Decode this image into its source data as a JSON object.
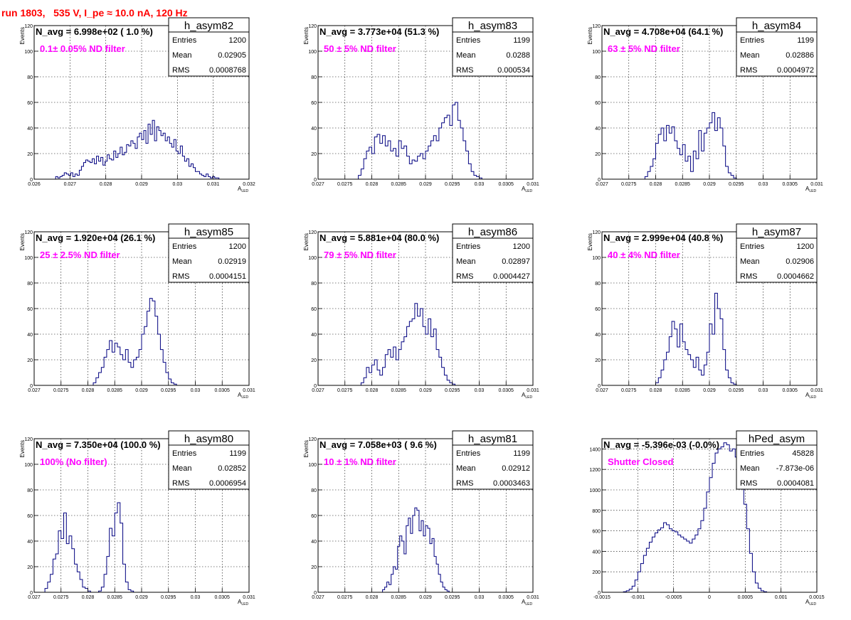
{
  "header": {
    "run_title": "run 1803,   535 V, I_pe ≈ 10.0 nA, 120 Hz"
  },
  "chart_data": [
    {
      "type": "histogram",
      "hist_name": "h_asym82",
      "n_avg_label": "N_avg = 6.998e+02 ( 1.0 %)",
      "filter_label": "0.1± 0.05% ND filter",
      "stats": [
        [
          "Entries",
          "1200"
        ],
        [
          "Mean",
          "0.02905"
        ],
        [
          "RMS",
          "0.0008768"
        ]
      ],
      "xlabel": "A_LED",
      "ylabel": "Events",
      "xlim": [
        0.026,
        0.032
      ],
      "ylim": [
        0,
        120
      ],
      "xticks": [
        "0.026",
        "0.027",
        "0.028",
        "0.029",
        "0.03",
        "0.031",
        "0.032"
      ],
      "yticks": [
        "0",
        "20",
        "40",
        "60",
        "80",
        "100",
        "120"
      ],
      "bin_width": 6e-05,
      "x_start": 0.0266,
      "values": [
        2,
        1,
        2,
        3,
        5,
        4,
        3,
        5,
        2,
        4,
        3,
        7,
        10,
        13,
        15,
        14,
        13,
        16,
        12,
        18,
        14,
        17,
        11,
        14,
        19,
        16,
        15,
        22,
        17,
        20,
        25,
        19,
        21,
        27,
        26,
        30,
        28,
        24,
        33,
        36,
        31,
        38,
        28,
        43,
        35,
        46,
        30,
        41,
        38,
        34,
        36,
        30,
        33,
        28,
        25,
        31,
        22,
        20,
        26,
        18,
        14,
        16,
        10,
        12,
        9,
        6,
        6,
        4,
        3,
        2,
        4,
        2,
        1,
        2,
        1,
        1
      ]
    },
    {
      "type": "histogram",
      "hist_name": "h_asym83",
      "n_avg_label": "N_avg = 3.773e+04 (51.3 %)",
      "filter_label": "50 ± 5% ND filter",
      "stats": [
        [
          "Entries",
          "1199"
        ],
        [
          "Mean",
          "0.0288"
        ],
        [
          "RMS",
          "0.000534"
        ]
      ],
      "xlabel": "A_LED",
      "ylabel": "Events",
      "xlim": [
        0.027,
        0.031
      ],
      "ylim": [
        0,
        120
      ],
      "xticks": [
        "0.027",
        "0.0275",
        "0.028",
        "0.0285",
        "0.029",
        "0.0295",
        "0.03",
        "0.0305",
        "0.031"
      ],
      "yticks": [
        "0",
        "20",
        "40",
        "60",
        "80",
        "100",
        "120"
      ],
      "bin_width": 5e-05,
      "x_start": 0.02775,
      "values": [
        3,
        8,
        16,
        22,
        25,
        20,
        33,
        35,
        28,
        34,
        26,
        30,
        22,
        24,
        18,
        30,
        24,
        26,
        18,
        12,
        15,
        14,
        18,
        20,
        16,
        22,
        26,
        30,
        34,
        30,
        40,
        44,
        48,
        50,
        42,
        58,
        60,
        46,
        40,
        30,
        22,
        12,
        6,
        3,
        2,
        1
      ]
    },
    {
      "type": "histogram",
      "hist_name": "h_asym84",
      "n_avg_label": "N_avg = 4.708e+04 (64.1 %)",
      "filter_label": "63 ± 5% ND filter",
      "stats": [
        [
          "Entries",
          "1199"
        ],
        [
          "Mean",
          "0.02886"
        ],
        [
          "RMS",
          "0.0004972"
        ]
      ],
      "xlabel": "A_LED",
      "ylabel": "Events",
      "xlim": [
        0.027,
        0.031
      ],
      "ylim": [
        0,
        120
      ],
      "xticks": [
        "0.027",
        "0.0275",
        "0.028",
        "0.0285",
        "0.029",
        "0.0295",
        "0.03",
        "0.0305",
        "0.031"
      ],
      "yticks": [
        "0",
        "20",
        "40",
        "60",
        "80",
        "100",
        "120"
      ],
      "bin_width": 5e-05,
      "x_start": 0.0278,
      "values": [
        2,
        6,
        10,
        16,
        28,
        35,
        40,
        30,
        42,
        36,
        41,
        30,
        24,
        19,
        27,
        14,
        18,
        6,
        22,
        16,
        38,
        22,
        36,
        40,
        44,
        52,
        38,
        48,
        40,
        26,
        10,
        5,
        3,
        1
      ]
    },
    {
      "type": "histogram",
      "hist_name": "h_asym85",
      "n_avg_label": "N_avg = 1.920e+04 (26.1 %)",
      "filter_label": "25 ± 2.5% ND filter",
      "stats": [
        [
          "Entries",
          "1200"
        ],
        [
          "Mean",
          "0.02919"
        ],
        [
          "RMS",
          "0.0004151"
        ]
      ],
      "xlabel": "A_LED",
      "ylabel": "Events",
      "xlim": [
        0.027,
        0.031
      ],
      "ylim": [
        0,
        120
      ],
      "xticks": [
        "0.027",
        "0.0275",
        "0.028",
        "0.0285",
        "0.029",
        "0.0295",
        "0.03",
        "0.0305",
        "0.031"
      ],
      "yticks": [
        "0",
        "20",
        "40",
        "60",
        "80",
        "100",
        "120"
      ],
      "bin_width": 5e-05,
      "x_start": 0.0281,
      "values": [
        2,
        6,
        10,
        14,
        22,
        28,
        35,
        26,
        33,
        30,
        24,
        20,
        28,
        18,
        14,
        20,
        22,
        28,
        40,
        46,
        58,
        68,
        66,
        54,
        40,
        28,
        18,
        10,
        5,
        2,
        1
      ]
    },
    {
      "type": "histogram",
      "hist_name": "h_asym86",
      "n_avg_label": "N_avg = 5.881e+04 (80.0 %)",
      "filter_label": "79 ± 5% ND filter",
      "stats": [
        [
          "Entries",
          "1200"
        ],
        [
          "Mean",
          "0.02897"
        ],
        [
          "RMS",
          "0.0004427"
        ]
      ],
      "xlabel": "A_LED",
      "ylabel": "Events",
      "xlim": [
        0.027,
        0.031
      ],
      "ylim": [
        0,
        120
      ],
      "xticks": [
        "0.027",
        "0.0275",
        "0.028",
        "0.0285",
        "0.029",
        "0.0295",
        "0.03",
        "0.0305",
        "0.031"
      ],
      "yticks": [
        "0",
        "20",
        "40",
        "60",
        "80",
        "100",
        "120"
      ],
      "bin_width": 5e-05,
      "x_start": 0.0278,
      "values": [
        2,
        6,
        14,
        10,
        16,
        20,
        12,
        8,
        14,
        24,
        28,
        22,
        30,
        20,
        28,
        34,
        38,
        46,
        50,
        52,
        64,
        54,
        60,
        46,
        40,
        52,
        38,
        44,
        28,
        22,
        14,
        8,
        4,
        2,
        1
      ]
    },
    {
      "type": "histogram",
      "hist_name": "h_asym87",
      "n_avg_label": "N_avg = 2.999e+04 (40.8 %)",
      "filter_label": "40 ± 4% ND filter",
      "stats": [
        [
          "Entries",
          "1200"
        ],
        [
          "Mean",
          "0.02906"
        ],
        [
          "RMS",
          "0.0004662"
        ]
      ],
      "xlabel": "A_LED",
      "ylabel": "Events",
      "xlim": [
        0.027,
        0.031
      ],
      "ylim": [
        0,
        120
      ],
      "xticks": [
        "0.027",
        "0.0275",
        "0.028",
        "0.0285",
        "0.029",
        "0.0295",
        "0.03",
        "0.0305",
        "0.031"
      ],
      "yticks": [
        "0",
        "20",
        "40",
        "60",
        "80",
        "100",
        "120"
      ],
      "bin_width": 5e-05,
      "x_start": 0.028,
      "values": [
        2,
        6,
        12,
        20,
        26,
        38,
        50,
        44,
        30,
        48,
        34,
        28,
        24,
        20,
        14,
        22,
        12,
        8,
        16,
        26,
        48,
        40,
        72,
        60,
        52,
        28,
        12,
        6,
        2,
        1
      ]
    },
    {
      "type": "histogram",
      "hist_name": "h_asym80",
      "n_avg_label": "N_avg = 7.350e+04 (100.0 %)",
      "filter_label": "100% (No filter)",
      "stats": [
        [
          "Entries",
          "1199"
        ],
        [
          "Mean",
          "0.02852"
        ],
        [
          "RMS",
          "0.0006954"
        ]
      ],
      "xlabel": "A_LED",
      "ylabel": "Events",
      "xlim": [
        0.027,
        0.031
      ],
      "ylim": [
        0,
        120
      ],
      "xticks": [
        "0.027",
        "0.0275",
        "0.028",
        "0.0285",
        "0.029",
        "0.0295",
        "0.03",
        "0.0305",
        "0.031"
      ],
      "yticks": [
        "0",
        "20",
        "40",
        "60",
        "80",
        "100",
        "120"
      ],
      "bin_width": 5e-05,
      "x_start": 0.0272,
      "values": [
        3,
        8,
        14,
        26,
        30,
        48,
        42,
        62,
        38,
        44,
        34,
        22,
        16,
        10,
        4,
        3,
        1,
        0,
        0,
        0,
        1,
        4,
        14,
        28,
        50,
        44,
        62,
        70,
        54,
        22,
        8,
        2,
        1
      ]
    },
    {
      "type": "histogram",
      "hist_name": "h_asym81",
      "n_avg_label": "N_avg = 7.058e+03 ( 9.6 %)",
      "filter_label": "10 ± 1% ND filter",
      "stats": [
        [
          "Entries",
          "1199"
        ],
        [
          "Mean",
          "0.02912"
        ],
        [
          "RMS",
          "0.0003463"
        ]
      ],
      "xlabel": "A_LED",
      "ylabel": "Events",
      "xlim": [
        0.027,
        0.031
      ],
      "ylim": [
        0,
        120
      ],
      "xticks": [
        "0.027",
        "0.0275",
        "0.028",
        "0.0285",
        "0.029",
        "0.0295",
        "0.03",
        "0.0305",
        "0.031"
      ],
      "yticks": [
        "0",
        "20",
        "40",
        "60",
        "80",
        "100",
        "120"
      ],
      "bin_width": 4e-05,
      "x_start": 0.0282,
      "values": [
        2,
        4,
        8,
        6,
        14,
        20,
        18,
        36,
        44,
        40,
        30,
        52,
        58,
        46,
        60,
        66,
        64,
        48,
        56,
        44,
        52,
        50,
        38,
        42,
        28,
        22,
        14,
        8,
        4,
        2,
        1
      ]
    },
    {
      "type": "histogram",
      "hist_name": "hPed_asym",
      "n_avg_label": "N_avg = -5.396e-03 (-0.0%)",
      "filter_label": "Shutter Closed",
      "stats": [
        [
          "Entries",
          "45828"
        ],
        [
          "Mean",
          "-7.873e-06"
        ],
        [
          "RMS",
          "0.0004081"
        ]
      ],
      "xlabel": "A_LED",
      "ylabel": "",
      "xlim": [
        -0.0015,
        0.0015
      ],
      "ylim": [
        0,
        1500
      ],
      "xticks": [
        "-0.0015",
        "-0.001",
        "-0.0005",
        "0",
        "0.0005",
        "0.001",
        "0.0015"
      ],
      "yticks": [
        "0",
        "200",
        "400",
        "600",
        "800",
        "1000",
        "1200",
        "1400"
      ],
      "bin_width": 4e-05,
      "x_start": -0.0012,
      "values": [
        5,
        15,
        30,
        60,
        120,
        200,
        280,
        360,
        430,
        490,
        540,
        580,
        610,
        630,
        680,
        660,
        620,
        600,
        590,
        560,
        540,
        520,
        500,
        480,
        520,
        560,
        620,
        700,
        820,
        980,
        1120,
        1260,
        1360,
        1400,
        1420,
        1460,
        1440,
        1380,
        1400,
        1320,
        1200,
        1050,
        860,
        620,
        380,
        200,
        90,
        40,
        15,
        5
      ]
    }
  ]
}
